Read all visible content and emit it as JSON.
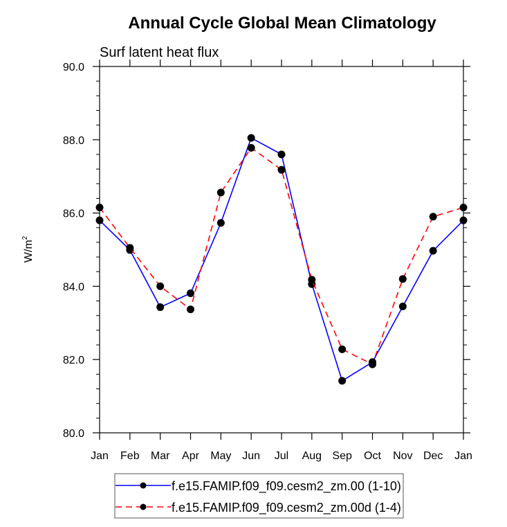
{
  "chart_data": {
    "type": "line",
    "title": "Annual Cycle Global Mean Climatology",
    "subtitle": "Surf latent heat flux",
    "xlabel": "",
    "ylabel": "W/m",
    "ylabel_superscript": "2",
    "categories": [
      "Jan",
      "Feb",
      "Mar",
      "Apr",
      "May",
      "Jun",
      "Jul",
      "Aug",
      "Sep",
      "Oct",
      "Nov",
      "Dec",
      "Jan"
    ],
    "ylim": [
      80.0,
      90.0
    ],
    "y_major_ticks": [
      80.0,
      82.0,
      84.0,
      86.0,
      88.0,
      90.0
    ],
    "y_tick_labels": [
      "80.0",
      "82.0",
      "84.0",
      "86.0",
      "88.0",
      "90.0"
    ],
    "y_minor_step": 0.4,
    "grid": false,
    "legend_position": "bottom-center",
    "series": [
      {
        "name": "f.e15.FAMIP.f09_f09.cesm2_zm.00 (1-10)",
        "color": "#0000ff",
        "line_style": "solid",
        "marker": "filled-circle",
        "values": [
          85.8,
          84.99,
          83.43,
          83.81,
          85.73,
          88.05,
          87.6,
          84.06,
          81.42,
          81.93,
          83.45,
          84.97,
          85.8
        ]
      },
      {
        "name": "f.e15.FAMIP.f09_f09.cesm2_zm.00d (1-4)",
        "color": "#ff0000",
        "line_style": "dashed",
        "marker": "filled-circle",
        "values": [
          86.15,
          85.05,
          84.0,
          83.37,
          86.56,
          87.78,
          87.18,
          84.18,
          82.28,
          81.87,
          84.2,
          85.9,
          86.15
        ]
      }
    ]
  }
}
